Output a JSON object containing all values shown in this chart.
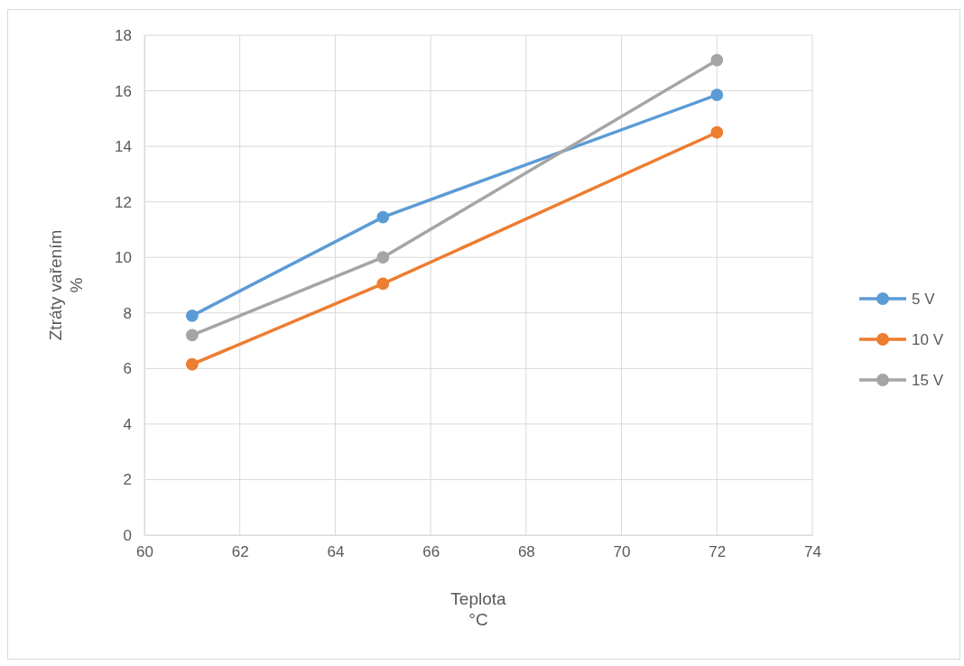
{
  "chart_data": {
    "type": "line",
    "xlabel": "Teplota\n°C",
    "ylabel": "Ztráty vařením\n%",
    "x": [
      61,
      65,
      72
    ],
    "series": [
      {
        "name": "5 V",
        "color": "#5b9bd5",
        "values": [
          7.9,
          11.45,
          15.85
        ]
      },
      {
        "name": "10 V",
        "color": "#ed7d31",
        "values": [
          6.15,
          9.05,
          14.5
        ]
      },
      {
        "name": "15 V",
        "color": "#a5a5a5",
        "values": [
          7.2,
          10.0,
          17.1
        ]
      }
    ],
    "xlim": [
      60,
      74
    ],
    "xticks": [
      60,
      62,
      64,
      66,
      68,
      70,
      72,
      74
    ],
    "ylim": [
      0,
      18
    ],
    "yticks": [
      0,
      2,
      4,
      6,
      8,
      10,
      12,
      14,
      16,
      18
    ],
    "grid": true,
    "legend": "right",
    "marker": "circle",
    "line_style": "solid"
  }
}
